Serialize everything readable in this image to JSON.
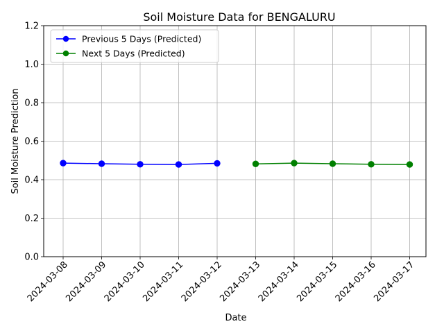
{
  "chart_data": {
    "type": "line",
    "title": "Soil Moisture Data for BENGALURU",
    "xlabel": "Date",
    "ylabel": "Soil Moisture Prediction",
    "ylim": [
      0,
      1.2
    ],
    "yticks": [
      "0.0",
      "0.2",
      "0.4",
      "0.6",
      "0.8",
      "1.0",
      "1.2"
    ],
    "x": [
      "2024-03-08",
      "2024-03-09",
      "2024-03-10",
      "2024-03-11",
      "2024-03-12",
      "2024-03-13",
      "2024-03-14",
      "2024-03-15",
      "2024-03-16",
      "2024-03-17"
    ],
    "grid": true,
    "legend_position": "top-left",
    "series": [
      {
        "name": "Previous 5 Days (Predicted)",
        "color": "#0000ff",
        "x": [
          "2024-03-08",
          "2024-03-09",
          "2024-03-10",
          "2024-03-11",
          "2024-03-12"
        ],
        "values": [
          0.486,
          0.483,
          0.48,
          0.479,
          0.485
        ]
      },
      {
        "name": "Next 5 Days (Predicted)",
        "color": "#008000",
        "x": [
          "2024-03-13",
          "2024-03-14",
          "2024-03-15",
          "2024-03-16",
          "2024-03-17"
        ],
        "values": [
          0.482,
          0.486,
          0.483,
          0.48,
          0.479
        ]
      }
    ]
  }
}
